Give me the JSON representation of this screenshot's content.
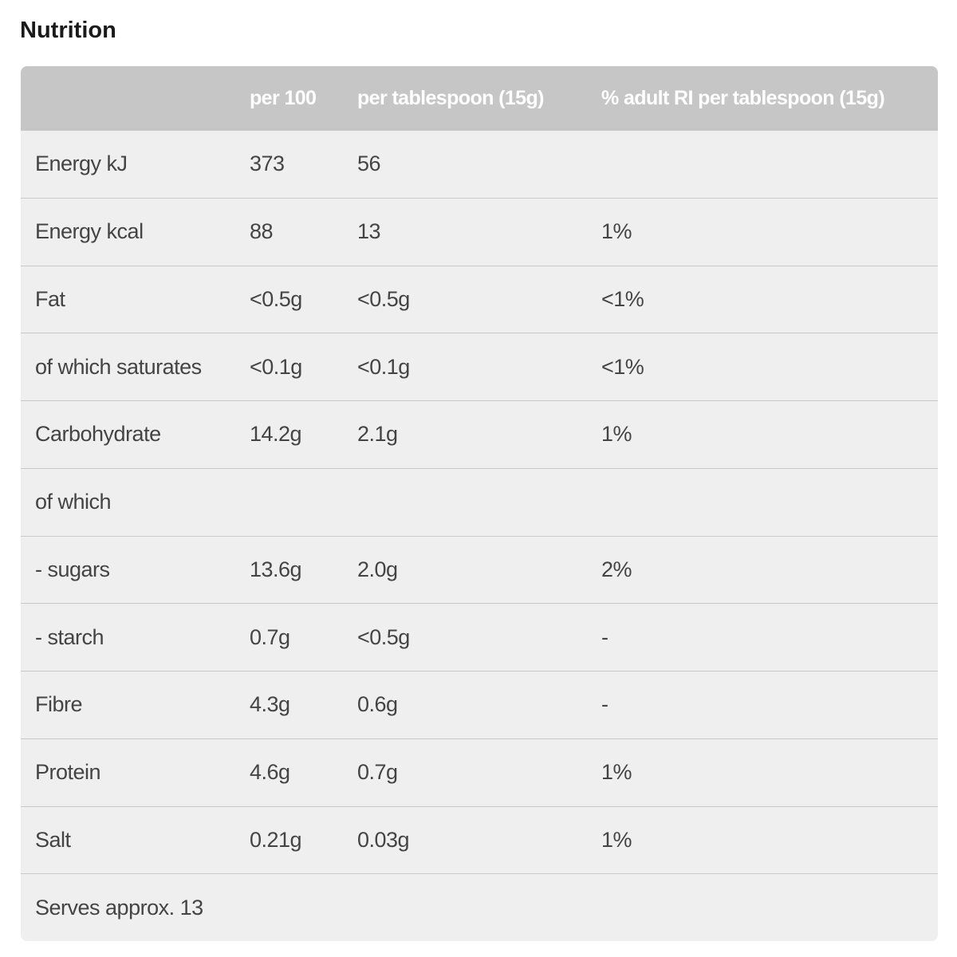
{
  "title": "Nutrition",
  "table": {
    "columns": [
      "per 100",
      "per tablespoon (15g)",
      "% adult RI per tablespoon (15g)"
    ],
    "rows": [
      [
        "Energy kJ",
        "373",
        "56"
      ],
      [
        "Energy kcal",
        "88",
        "13",
        "1%"
      ],
      [
        "Fat",
        "<0.5g",
        "<0.5g",
        "<1%"
      ],
      [
        "of which saturates",
        "<0.1g",
        "<0.1g",
        "<1%"
      ],
      [
        "Carbohydrate",
        "14.2g",
        "2.1g",
        "1%"
      ],
      [
        "of which"
      ],
      [
        "- sugars",
        "13.6g",
        "2.0g",
        "2%"
      ],
      [
        "- starch",
        "0.7g",
        "<0.5g",
        "-"
      ],
      [
        "Fibre",
        "4.3g",
        "0.6g",
        "-"
      ],
      [
        "Protein",
        "4.6g",
        "0.7g",
        "1%"
      ],
      [
        "Salt",
        "0.21g",
        "0.03g",
        "1%"
      ],
      [
        "Serves approx. 13"
      ]
    ]
  }
}
